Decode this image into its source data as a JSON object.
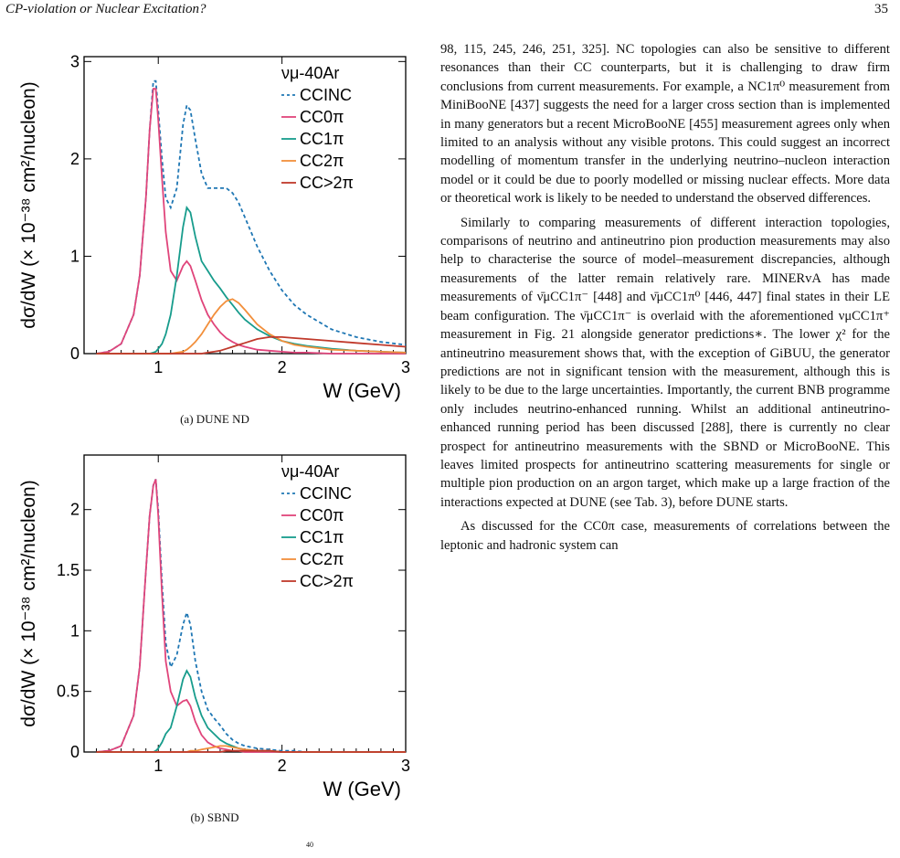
{
  "header": {
    "title": "CP-violation or Nuclear Excitation?",
    "page_number": "35"
  },
  "figures": [
    {
      "caption": "(a) DUNE ND",
      "chart_data": {
        "type": "line",
        "ylabel": "dσ/dW (× 10⁻³⁸ cm²/nucleon)",
        "xlabel": "W (GeV)",
        "xlim": [
          0.4,
          3.0
        ],
        "ylim": [
          0,
          3.05
        ],
        "xticks": [
          1,
          2,
          3
        ],
        "yticks": [
          0,
          1,
          2,
          3
        ],
        "legend_title": "νμ-40Ar",
        "legend_position": "top-right",
        "x": [
          0.5,
          0.6,
          0.7,
          0.8,
          0.85,
          0.9,
          0.93,
          0.96,
          0.98,
          1.0,
          1.03,
          1.06,
          1.1,
          1.15,
          1.2,
          1.23,
          1.26,
          1.3,
          1.35,
          1.4,
          1.45,
          1.5,
          1.55,
          1.6,
          1.65,
          1.7,
          1.8,
          1.9,
          2.0,
          2.1,
          2.2,
          2.4,
          2.6,
          2.8,
          3.0
        ],
        "series": [
          {
            "name": "CCINC",
            "color": "#1f77b4",
            "dashed": true,
            "values": [
              0,
              0.02,
              0.1,
              0.4,
              0.8,
              1.6,
              2.3,
              2.8,
              2.8,
              2.5,
              2.0,
              1.6,
              1.5,
              1.7,
              2.35,
              2.55,
              2.5,
              2.2,
              1.85,
              1.7,
              1.7,
              1.7,
              1.7,
              1.65,
              1.55,
              1.4,
              1.1,
              0.85,
              0.65,
              0.5,
              0.4,
              0.25,
              0.17,
              0.12,
              0.09
            ]
          },
          {
            "name": "CC0π",
            "color": "#e0457b",
            "dashed": false,
            "values": [
              0,
              0.02,
              0.1,
              0.4,
              0.8,
              1.6,
              2.3,
              2.72,
              2.72,
              2.4,
              1.8,
              1.25,
              0.85,
              0.75,
              0.9,
              0.95,
              0.9,
              0.75,
              0.55,
              0.4,
              0.3,
              0.22,
              0.16,
              0.12,
              0.09,
              0.07,
              0.04,
              0.03,
              0.02,
              0.01,
              0.01,
              0,
              0,
              0,
              0
            ]
          },
          {
            "name": "CC1π",
            "color": "#179c8c",
            "dashed": false,
            "values": [
              0,
              0,
              0,
              0,
              0,
              0,
              0,
              0.01,
              0.02,
              0.05,
              0.1,
              0.2,
              0.4,
              0.8,
              1.3,
              1.5,
              1.45,
              1.2,
              0.95,
              0.85,
              0.75,
              0.67,
              0.58,
              0.5,
              0.42,
              0.35,
              0.25,
              0.18,
              0.13,
              0.1,
              0.08,
              0.05,
              0.03,
              0.02,
              0.01
            ]
          },
          {
            "name": "CC2π",
            "color": "#f28f3b",
            "dashed": false,
            "values": [
              0,
              0,
              0,
              0,
              0,
              0,
              0,
              0,
              0,
              0,
              0,
              0,
              0,
              0.01,
              0.02,
              0.04,
              0.07,
              0.12,
              0.2,
              0.3,
              0.4,
              0.48,
              0.54,
              0.56,
              0.52,
              0.45,
              0.3,
              0.2,
              0.13,
              0.09,
              0.07,
              0.04,
              0.03,
              0.02,
              0.01
            ]
          },
          {
            "name": "CC>2π",
            "color": "#c0392b",
            "dashed": false,
            "values": [
              0,
              0,
              0,
              0,
              0,
              0,
              0,
              0,
              0,
              0,
              0,
              0,
              0,
              0,
              0,
              0,
              0,
              0,
              0,
              0.01,
              0.02,
              0.03,
              0.05,
              0.07,
              0.09,
              0.11,
              0.15,
              0.17,
              0.17,
              0.16,
              0.15,
              0.13,
              0.11,
              0.09,
              0.07
            ]
          }
        ]
      }
    },
    {
      "caption": "(b) SBND",
      "chart_data": {
        "type": "line",
        "ylabel": "dσ/dW (× 10⁻³⁸ cm²/nucleon)",
        "xlabel": "W (GeV)",
        "xlim": [
          0.4,
          3.0
        ],
        "ylim": [
          0,
          2.45
        ],
        "xticks": [
          1,
          2,
          3
        ],
        "yticks": [
          0,
          0.5,
          1,
          1.5,
          2
        ],
        "legend_title": "νμ-40Ar",
        "legend_position": "top-right",
        "x": [
          0.5,
          0.6,
          0.7,
          0.8,
          0.85,
          0.9,
          0.93,
          0.96,
          0.98,
          1.0,
          1.03,
          1.06,
          1.1,
          1.15,
          1.2,
          1.23,
          1.26,
          1.3,
          1.35,
          1.4,
          1.45,
          1.5,
          1.55,
          1.6,
          1.65,
          1.7,
          1.8,
          1.9,
          2.0,
          2.1,
          2.2,
          2.4,
          2.6,
          2.8,
          3.0
        ],
        "series": [
          {
            "name": "CCINC",
            "color": "#1f77b4",
            "dashed": true,
            "values": [
              0,
              0.01,
              0.05,
              0.3,
              0.7,
              1.5,
              1.95,
              2.2,
              2.25,
              2.0,
              1.4,
              0.9,
              0.7,
              0.8,
              1.05,
              1.15,
              1.05,
              0.75,
              0.5,
              0.35,
              0.28,
              0.22,
              0.15,
              0.1,
              0.07,
              0.05,
              0.03,
              0.02,
              0.01,
              0.01,
              0,
              0,
              0,
              0,
              0
            ]
          },
          {
            "name": "CC0π",
            "color": "#e0457b",
            "dashed": false,
            "values": [
              0,
              0.01,
              0.05,
              0.3,
              0.7,
              1.5,
              1.95,
              2.2,
              2.25,
              1.95,
              1.3,
              0.75,
              0.5,
              0.38,
              0.42,
              0.43,
              0.38,
              0.25,
              0.14,
              0.08,
              0.05,
              0.03,
              0.02,
              0.01,
              0.01,
              0,
              0,
              0,
              0,
              0,
              0,
              0,
              0,
              0,
              0
            ]
          },
          {
            "name": "CC1π",
            "color": "#179c8c",
            "dashed": false,
            "values": [
              0,
              0,
              0,
              0,
              0,
              0,
              0,
              0,
              0.01,
              0.03,
              0.08,
              0.15,
              0.2,
              0.38,
              0.6,
              0.67,
              0.62,
              0.45,
              0.3,
              0.2,
              0.15,
              0.1,
              0.07,
              0.05,
              0.03,
              0.02,
              0.01,
              0.01,
              0,
              0,
              0,
              0,
              0,
              0,
              0
            ]
          },
          {
            "name": "CC2π",
            "color": "#f28f3b",
            "dashed": false,
            "values": [
              0,
              0,
              0,
              0,
              0,
              0,
              0,
              0,
              0,
              0,
              0,
              0,
              0,
              0,
              0,
              0,
              0.01,
              0.01,
              0.02,
              0.03,
              0.04,
              0.05,
              0.05,
              0.04,
              0.03,
              0.02,
              0.01,
              0.01,
              0,
              0,
              0,
              0,
              0,
              0,
              0
            ]
          },
          {
            "name": "CC>2π",
            "color": "#c0392b",
            "dashed": false,
            "values": [
              0,
              0,
              0,
              0,
              0,
              0,
              0,
              0,
              0,
              0,
              0,
              0,
              0,
              0,
              0,
              0,
              0,
              0,
              0,
              0,
              0,
              0,
              0.01,
              0.01,
              0.01,
              0.01,
              0.01,
              0.01,
              0,
              0,
              0,
              0,
              0,
              0,
              0
            ]
          }
        ]
      }
    }
  ],
  "body": {
    "p1": "98, 115, 245, 246, 251, 325]. NC topologies can also be sensitive to different resonances than their CC counterparts, but it is challenging to draw firm conclusions from current measurements. For example, a NC1π⁰ measurement from MiniBooNE [437] suggests the need for a larger cross section than is implemented in many generators but a recent MicroBooNE [455] measurement agrees only when limited to an analysis without any visible protons. This could suggest an incorrect modelling of momentum transfer in the underlying neutrino–nucleon interaction model or it could be due to poorly modelled or missing nuclear effects. More data or theoretical work is likely to be needed to understand the observed differences.",
    "p2": "Similarly to comparing measurements of different interaction topologies, comparisons of neutrino and antineutrino pion production measurements may also help to characterise the source of model–measurement discrepancies, although measurements of the latter remain relatively rare. MINERvA has made measurements of ν̄μCC1π⁻ [448] and ν̄μCC1π⁰ [446, 447] final states in their LE beam configuration. The ν̄μCC1π⁻ is overlaid with the aforementioned νμCC1π⁺ measurement in Fig. 21 alongside generator predictions∗. The lower χ² for the antineutrino measurement shows that, with the exception of GiBUU, the generator predictions are not in significant tension with the measurement, although this is likely to be due to the large uncertainties. Importantly, the current BNB programme only includes neutrino-enhanced running. Whilst an additional antineutrino-enhanced running period has been discussed [288], there is currently no clear prospect for antineutrino measurements with the SBND or MicroBooNE. This leaves limited prospects for antineutrino scattering measurements for single or multiple pion production on an argon target, which make up a large fraction of the interactions expected at DUNE (see Tab. 3), before DUNE starts.",
    "p3": "As discussed for the CC0π case, measurements of correlations between the leptonic and hadronic system can"
  },
  "footnote_mark": "40"
}
